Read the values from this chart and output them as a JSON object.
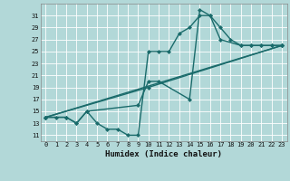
{
  "xlabel": "Humidex (Indice chaleur)",
  "background_color": "#b2d8d8",
  "grid_color": "#ffffff",
  "line_color": "#1a6b6b",
  "xlim": [
    -0.5,
    23.5
  ],
  "ylim": [
    10,
    33
  ],
  "yticks": [
    11,
    13,
    15,
    17,
    19,
    21,
    23,
    25,
    27,
    29,
    31
  ],
  "xticks": [
    0,
    1,
    2,
    3,
    4,
    5,
    6,
    7,
    8,
    9,
    10,
    11,
    12,
    13,
    14,
    15,
    16,
    17,
    18,
    19,
    20,
    21,
    22,
    23
  ],
  "line1_x": [
    0,
    1,
    2,
    3,
    4,
    5,
    6,
    7,
    8,
    9,
    10,
    11,
    12,
    13,
    14,
    15,
    16,
    17,
    18,
    19,
    20,
    21,
    22,
    23
  ],
  "line1_y": [
    14,
    14,
    14,
    13,
    15,
    13,
    12,
    12,
    11,
    11,
    25,
    25,
    25,
    28,
    29,
    31,
    31,
    29,
    27,
    26,
    26,
    26,
    26,
    26
  ],
  "line2_x": [
    0,
    2,
    3,
    4,
    9,
    10,
    11,
    14,
    15,
    16,
    17,
    19,
    20,
    21,
    22,
    23
  ],
  "line2_y": [
    14,
    14,
    13,
    15,
    16,
    20,
    20,
    17,
    32,
    31,
    27,
    26,
    26,
    26,
    26,
    26
  ],
  "line3_x": [
    0,
    23
  ],
  "line3_y": [
    14,
    26
  ],
  "line4_x": [
    0,
    10,
    23
  ],
  "line4_y": [
    14,
    19,
    26
  ],
  "marker_size": 2.5,
  "line_width": 1.0
}
